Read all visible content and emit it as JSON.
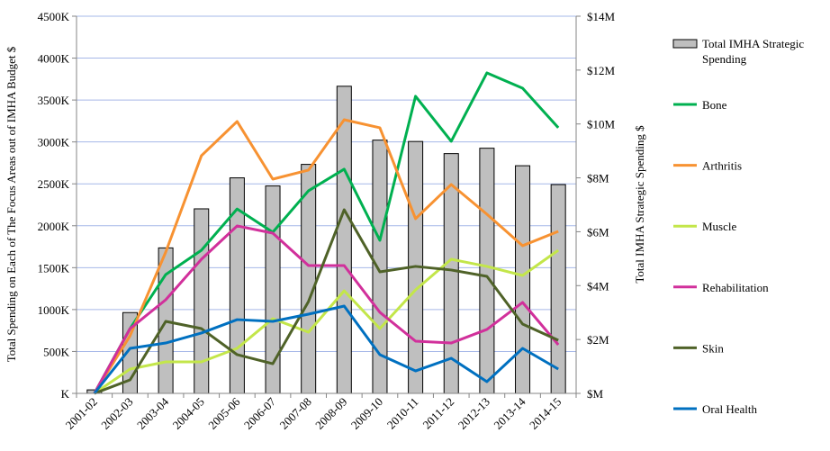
{
  "chart_data": {
    "type": "bar+line",
    "title": "",
    "xlabel": "",
    "ylabel": "Total Spending on Each of The Focus Areas out of IMHA Budget  $",
    "y2label": "Total IMHA Strategic Spending  $",
    "categories": [
      "2001-02",
      "2002-03",
      "2003-04",
      "2004-05",
      "2005-06",
      "2006-07",
      "2007-08",
      "2008-09",
      "2009-10",
      "2010-11",
      "2011-12",
      "2012-13",
      "2013-14",
      "2014-15"
    ],
    "ylim": [
      0,
      4500
    ],
    "yticks": [
      0,
      500,
      1000,
      1500,
      2000,
      2500,
      3000,
      3500,
      4000,
      4500
    ],
    "ytick_labels": [
      "K",
      "500K",
      "1000K",
      "1500K",
      "2000K",
      "2500K",
      "3000K",
      "3500K",
      "4000K",
      "4500K"
    ],
    "y2lim": [
      0,
      14
    ],
    "y2ticks": [
      0,
      2,
      4,
      6,
      8,
      10,
      12,
      14
    ],
    "y2tick_labels": [
      "$M",
      "$2M",
      "$4M",
      "$6M",
      "$8M",
      "$10M",
      "$12M",
      "$14M"
    ],
    "grid": true,
    "legend_placement": "right",
    "bars": {
      "name": "Total IMHA Strategic Spending",
      "axis": "right",
      "color": "#bfbfbf",
      "values": [
        0.13,
        3.0,
        5.4,
        6.85,
        8.0,
        7.7,
        8.5,
        11.4,
        9.4,
        9.35,
        8.9,
        9.1,
        8.45,
        7.75
      ]
    },
    "series": [
      {
        "name": "Bone",
        "color": "#00b050",
        "values": [
          0,
          773,
          1418,
          1708,
          2200,
          1923,
          2417,
          2675,
          1826,
          3545,
          3008,
          3824,
          3641,
          3169
        ]
      },
      {
        "name": "Arthritis",
        "color": "#f79232",
        "values": [
          0,
          687,
          1686,
          2836,
          3244,
          2556,
          2664,
          3265,
          3169,
          2084,
          2492,
          2137,
          1762,
          1933
        ]
      },
      {
        "name": "Muscle",
        "color": "#c3e64a",
        "values": [
          0,
          290,
          376,
          376,
          537,
          891,
          730,
          1224,
          773,
          1235,
          1600,
          1515,
          1407,
          1708
        ]
      },
      {
        "name": "Rehabilitation",
        "color": "#d1309b",
        "values": [
          0,
          773,
          1117,
          1600,
          1998,
          1912,
          1525,
          1525,
          967,
          623,
          601,
          763,
          1085,
          580
        ]
      },
      {
        "name": "Skin",
        "color": "#4f6228",
        "values": [
          0,
          161,
          859,
          773,
          462,
          354,
          1096,
          2191,
          1450,
          1515,
          1472,
          1396,
          827,
          634
        ]
      },
      {
        "name": "Oral Health",
        "color": "#0070c0",
        "values": [
          0,
          537,
          601,
          720,
          880,
          859,
          945,
          1042,
          462,
          268,
          419,
          140,
          537,
          290
        ]
      }
    ]
  }
}
